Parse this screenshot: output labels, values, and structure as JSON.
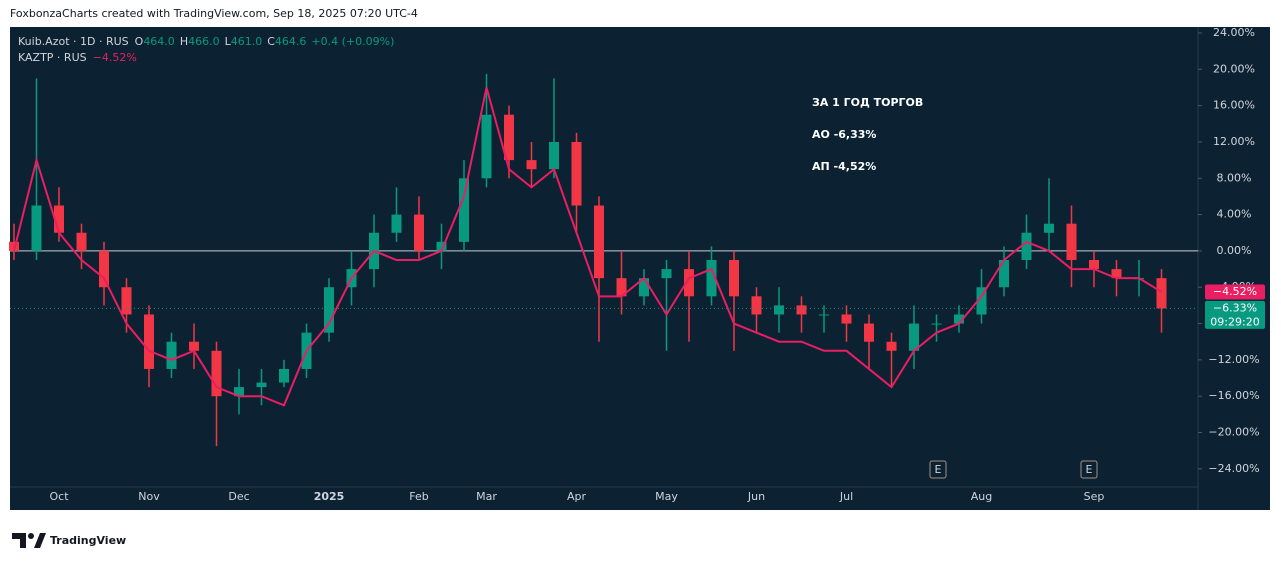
{
  "header": {
    "credit": "FoxbonzaCharts created with TradingView.com, Sep 18, 2025 07:20 UTC-4"
  },
  "footer": {
    "brand": "TradingView"
  },
  "chart_data": {
    "type": "candlestick",
    "annotation": [
      "ЗА 1 ГОД ТОРГОВ",
      "АО -6,33%",
      "АП -4,52%"
    ],
    "legend": {
      "ohlc": [
        {
          "key": "O",
          "value": "464.0"
        },
        {
          "key": "H",
          "value": "466.0"
        },
        {
          "key": "L",
          "value": "461.0"
        },
        {
          "key": "C",
          "value": "464.6"
        }
      ],
      "change": "+0.4 (+0.09%)",
      "line_change": "−4.52%"
    },
    "categories": [
      null,
      null,
      "Oct",
      null,
      null,
      null,
      "Nov",
      null,
      null,
      null,
      "Dec",
      null,
      null,
      null,
      "2025",
      null,
      null,
      null,
      "Feb",
      null,
      null,
      "Mar",
      null,
      null,
      null,
      "Apr",
      null,
      null,
      null,
      "May",
      null,
      null,
      null,
      "Jun",
      null,
      null,
      null,
      "Jul",
      null,
      null,
      null,
      null,
      null,
      "Aug",
      null,
      null,
      null,
      null,
      "Sep",
      null,
      null,
      null
    ],
    "series": [
      {
        "name": "Kuib.Azot · 1D · RUS",
        "type": "candlestick",
        "up_color": "#089981",
        "down_color": "#f23645",
        "open": [
          1,
          0,
          5,
          2,
          0,
          -4,
          -7,
          -13,
          -10,
          -11,
          -16,
          -15,
          -14.5,
          -13,
          -9,
          -4,
          -2,
          2,
          4,
          0,
          1,
          8,
          15,
          10,
          9,
          12,
          5,
          -3,
          -5,
          -3,
          -2,
          -5,
          -1,
          -5,
          -7,
          -6,
          -7,
          -7,
          -8,
          -10,
          -11,
          -8,
          -8,
          -7,
          -4,
          -1,
          2,
          3,
          -1,
          -2,
          -3,
          -3
        ],
        "high": [
          3,
          19,
          7,
          3,
          1,
          -3,
          -6,
          -9,
          -8,
          -10,
          -13,
          -13,
          -12,
          -8,
          -3,
          0,
          4,
          7,
          6,
          3,
          10,
          19.5,
          16,
          12,
          19,
          13,
          6,
          0,
          -2,
          -1,
          0,
          0.5,
          0,
          -4,
          -4,
          -5,
          -6,
          -6,
          -7,
          -9,
          -6,
          -7,
          -6,
          -2,
          0.5,
          4,
          8,
          5,
          0,
          -1,
          -1,
          -2
        ],
        "low": [
          -1,
          -1,
          1,
          -2,
          -6,
          -9,
          -15,
          -14,
          -13,
          -21.5,
          -18,
          -17,
          -15,
          -14,
          -10,
          -6,
          -4,
          1,
          -1,
          -2,
          0,
          7,
          8,
          7,
          8,
          2,
          -10,
          -7,
          -6,
          -11,
          -10,
          -6,
          -11,
          -9,
          -9,
          -9,
          -9,
          -10,
          -13,
          -15,
          -13,
          -10,
          -9,
          -8,
          -5,
          -2,
          0,
          -4,
          -4,
          -5,
          -5,
          -9
        ],
        "close": [
          0,
          5,
          2,
          0,
          -4,
          -7,
          -13,
          -10,
          -11,
          -16,
          -15,
          -14.5,
          -13,
          -9,
          -4,
          -2,
          2,
          4,
          0,
          1,
          8,
          15,
          10,
          9,
          12,
          5,
          -3,
          -5,
          -3,
          -2,
          -5,
          -1,
          -5,
          -7,
          -6,
          -7,
          -7,
          -8,
          -10,
          -11,
          -8,
          -8,
          -7,
          -4,
          -1,
          2,
          3,
          -1,
          -2,
          -3,
          -3,
          -6.33
        ]
      },
      {
        "name": "KAZTP · RUS",
        "type": "line",
        "color": "#e91e63",
        "values": [
          0,
          10,
          2,
          -1,
          -3,
          -8,
          -11,
          -12,
          -11,
          -15,
          -16,
          -16,
          -17,
          -11,
          -8,
          -3,
          0,
          -1,
          -1,
          0,
          6,
          18,
          9,
          7,
          9,
          2,
          -5,
          -5,
          -3,
          -7,
          -3,
          -2,
          -8,
          -9,
          -10,
          -10,
          -11,
          -11,
          -13,
          -15,
          -11,
          -9,
          -8,
          -5,
          -1,
          1,
          0,
          -2,
          -2,
          -3,
          -3,
          -4.52
        ]
      }
    ],
    "price_labels": [
      {
        "value": -4.52,
        "label": "−4.52%",
        "color": "#e91e63"
      },
      {
        "value": -6.33,
        "label": "−6.33%",
        "color": "#089981",
        "countdown": "09:29:20"
      }
    ],
    "events": [
      "E",
      "E"
    ],
    "ylim": [
      -26,
      24.66
    ],
    "yticks": [
      {
        "value": 24,
        "label": "24.00%"
      },
      {
        "value": 20,
        "label": "20.00%"
      },
      {
        "value": 16,
        "label": "16.00%"
      },
      {
        "value": 12,
        "label": "12.00%"
      },
      {
        "value": 8,
        "label": "8.00%"
      },
      {
        "value": 4,
        "label": "4.00%"
      },
      {
        "value": 0,
        "label": "0.00%"
      },
      {
        "value": -4,
        "label": "−4.00%"
      },
      {
        "value": -8,
        "label": "−8.00%"
      },
      {
        "value": -12,
        "label": "−12.00%"
      },
      {
        "value": -16,
        "label": "−16.00%"
      },
      {
        "value": -20,
        "label": "−20.00%"
      },
      {
        "value": -24,
        "label": "−24.00%"
      }
    ]
  }
}
